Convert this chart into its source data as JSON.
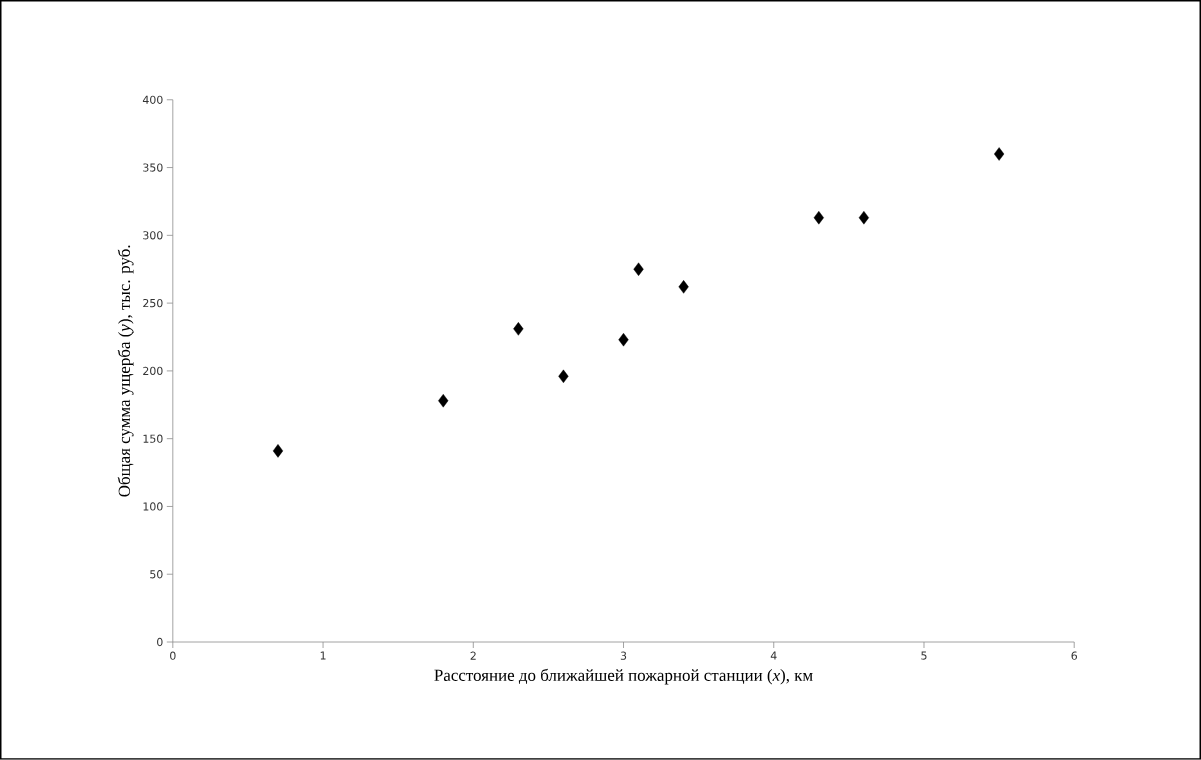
{
  "chart_data": {
    "type": "scatter",
    "xlabel": "Расстояние до ближайшей пожарной станции (*x*), км",
    "ylabel": "Общая сумма ущерба (*y*), тыс. руб.",
    "x": [
      0.7,
      1.8,
      2.3,
      2.6,
      3.0,
      3.1,
      3.4,
      4.3,
      4.6,
      5.5
    ],
    "values": [
      141,
      178,
      231,
      196,
      223,
      275,
      262,
      313,
      313,
      360
    ],
    "color": "#000000",
    "marker": "diamond",
    "xlim": [
      0,
      6
    ],
    "xticks": [
      0,
      1,
      2,
      3,
      4,
      5,
      6
    ],
    "ylim": [
      0,
      400
    ],
    "yticks": [
      0,
      50,
      100,
      150,
      200,
      250,
      300,
      350,
      400
    ],
    "grid": false
  }
}
